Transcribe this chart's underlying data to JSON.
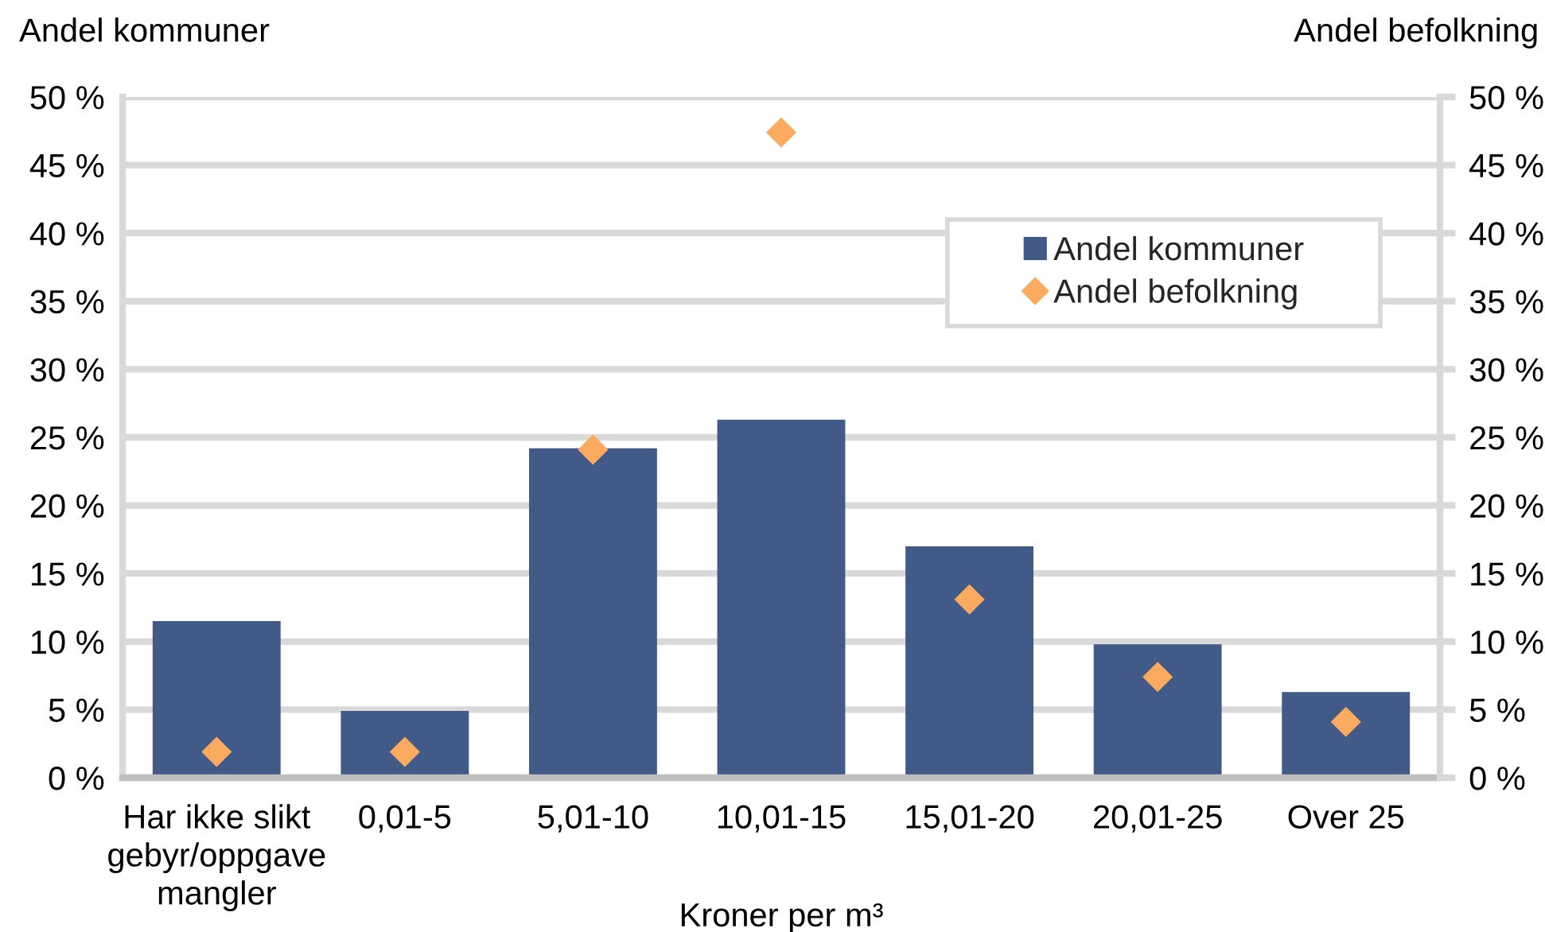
{
  "chart_data": {
    "type": "bar",
    "categories": [
      "Har ikke slikt\ngebyr/oppgave\nmangler",
      "0,01-5",
      "5,01-10",
      "10,01-15",
      "15,01-20",
      "20,01-25",
      "Over 25"
    ],
    "series": [
      {
        "name": "Andel kommuner",
        "color": "#425a87",
        "values": [
          11.5,
          4.9,
          24.2,
          26.3,
          17.0,
          9.8,
          6.3
        ]
      },
      {
        "name": "Andel befolkning",
        "type": "scatter",
        "axis": "y2",
        "color": "#fbab60",
        "values": [
          1.9,
          1.9,
          24.1,
          47.4,
          13.1,
          7.4,
          4.1
        ]
      }
    ],
    "xlabel": "Kroner per m³",
    "ylabel": "Andel kommuner",
    "y2label": "Andel befolkning",
    "ylim": [
      0,
      50
    ],
    "yticks": [
      {
        "value": 0,
        "label": "0 %"
      },
      {
        "value": 5,
        "label": "5 %"
      },
      {
        "value": 10,
        "label": "10 %"
      },
      {
        "value": 15,
        "label": "15 %"
      },
      {
        "value": 20,
        "label": "20 %"
      },
      {
        "value": 25,
        "label": "25 %"
      },
      {
        "value": 30,
        "label": "30 %"
      },
      {
        "value": 35,
        "label": "35 %"
      },
      {
        "value": 40,
        "label": "40 %"
      },
      {
        "value": 45,
        "label": "45 %"
      },
      {
        "value": 50,
        "label": "50 %"
      }
    ],
    "y2lim": [
      0,
      50
    ],
    "y2ticks": [
      {
        "value": 0,
        "label": "0 %"
      },
      {
        "value": 5,
        "label": "5 %"
      },
      {
        "value": 10,
        "label": "10 %"
      },
      {
        "value": 15,
        "label": "15 %"
      },
      {
        "value": 20,
        "label": "20 %"
      },
      {
        "value": 25,
        "label": "25 %"
      },
      {
        "value": 30,
        "label": "30 %"
      },
      {
        "value": 35,
        "label": "35 %"
      },
      {
        "value": 40,
        "label": "40 %"
      },
      {
        "value": 45,
        "label": "45 %"
      },
      {
        "value": 50,
        "label": "50 %"
      }
    ],
    "grid": "y",
    "legend": "top right",
    "marker": "diamond"
  }
}
